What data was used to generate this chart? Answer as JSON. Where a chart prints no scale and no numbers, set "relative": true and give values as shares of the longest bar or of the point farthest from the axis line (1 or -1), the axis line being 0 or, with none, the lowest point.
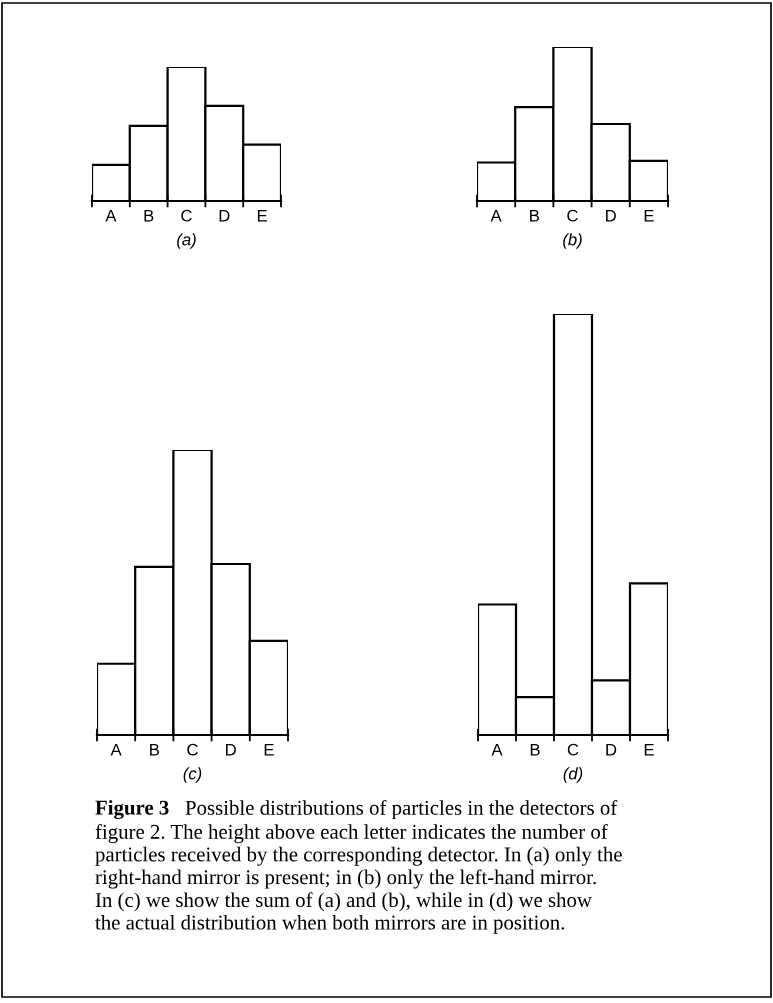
{
  "chart_data": [
    {
      "type": "bar",
      "relative": true,
      "xlabel": "(a)",
      "categories": [
        "A",
        "B",
        "C",
        "D",
        "E"
      ],
      "color": "#ffffff",
      "values": [
        0.27,
        0.56,
        1,
        0.71,
        0.42
      ]
    },
    {
      "type": "bar",
      "relative": true,
      "xlabel": "(b)",
      "categories": [
        "A",
        "B",
        "C",
        "D",
        "E"
      ],
      "color": "#ffffff",
      "values": [
        0.25,
        0.61,
        1,
        0.5,
        0.26
      ]
    },
    {
      "type": "bar",
      "relative": true,
      "xlabel": "(c)",
      "categories": [
        "A",
        "B",
        "C",
        "D",
        "E"
      ],
      "color": "#ffffff",
      "values": [
        0.25,
        0.59,
        1,
        0.6,
        0.33
      ]
    },
    {
      "type": "bar",
      "relative": true,
      "xlabel": "(d)",
      "categories": [
        "A",
        "B",
        "C",
        "D",
        "E"
      ],
      "color": "#ffffff",
      "values": [
        0.31,
        0.09,
        1,
        0.13,
        0.36
      ],
      "annotations": [
        "Figure 3",
        "Possible distributions of particles in the detectors of\nfigure 2. The height above each letter indicates the number of\nparticles received by the corresponding detector. In (a) only the\nright-hand mirror is present; in (b) only the left-hand mirror.\nIn (c) we show the sum of (a) and (b), while in (d) we show\nthe actual distribution when both mirrors are in position."
      ]
    }
  ]
}
